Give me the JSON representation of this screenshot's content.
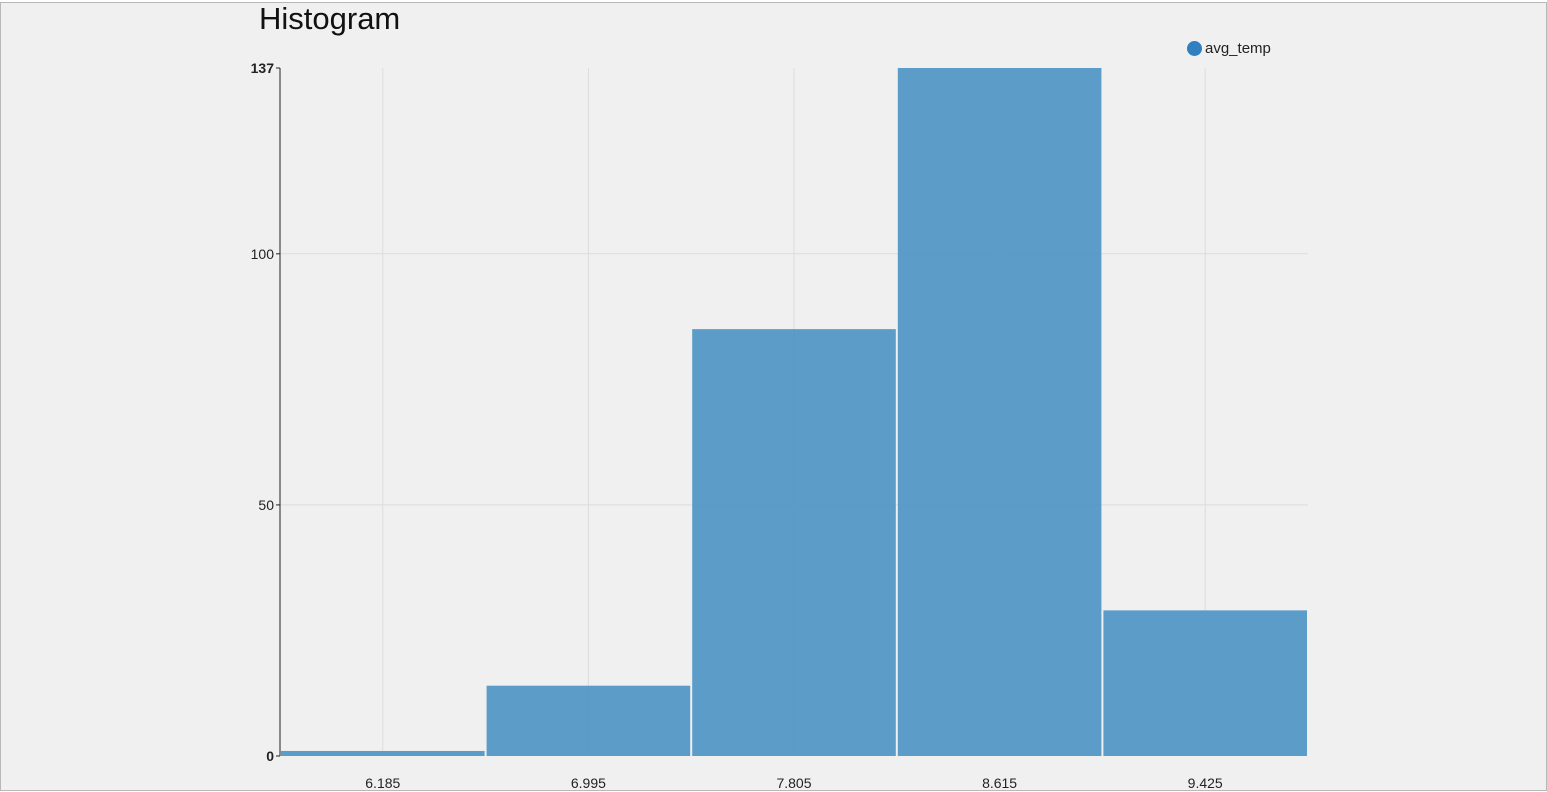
{
  "chart_data": {
    "type": "bar",
    "title": "Histogram",
    "categories": [
      "6.185",
      "6.995",
      "7.805",
      "8.615",
      "9.425"
    ],
    "series": [
      {
        "name": "avg_temp",
        "values": [
          1,
          14,
          85,
          137,
          29
        ]
      }
    ],
    "yticks": [
      "0",
      "50",
      "100",
      "137"
    ],
    "ylim": [
      0,
      137
    ],
    "grid": true,
    "legend": "top-right",
    "colors": {
      "bar": "#5297c6",
      "legend": "#2f7fc1",
      "grid": "#dcdcdc",
      "axis": "#222222"
    }
  }
}
